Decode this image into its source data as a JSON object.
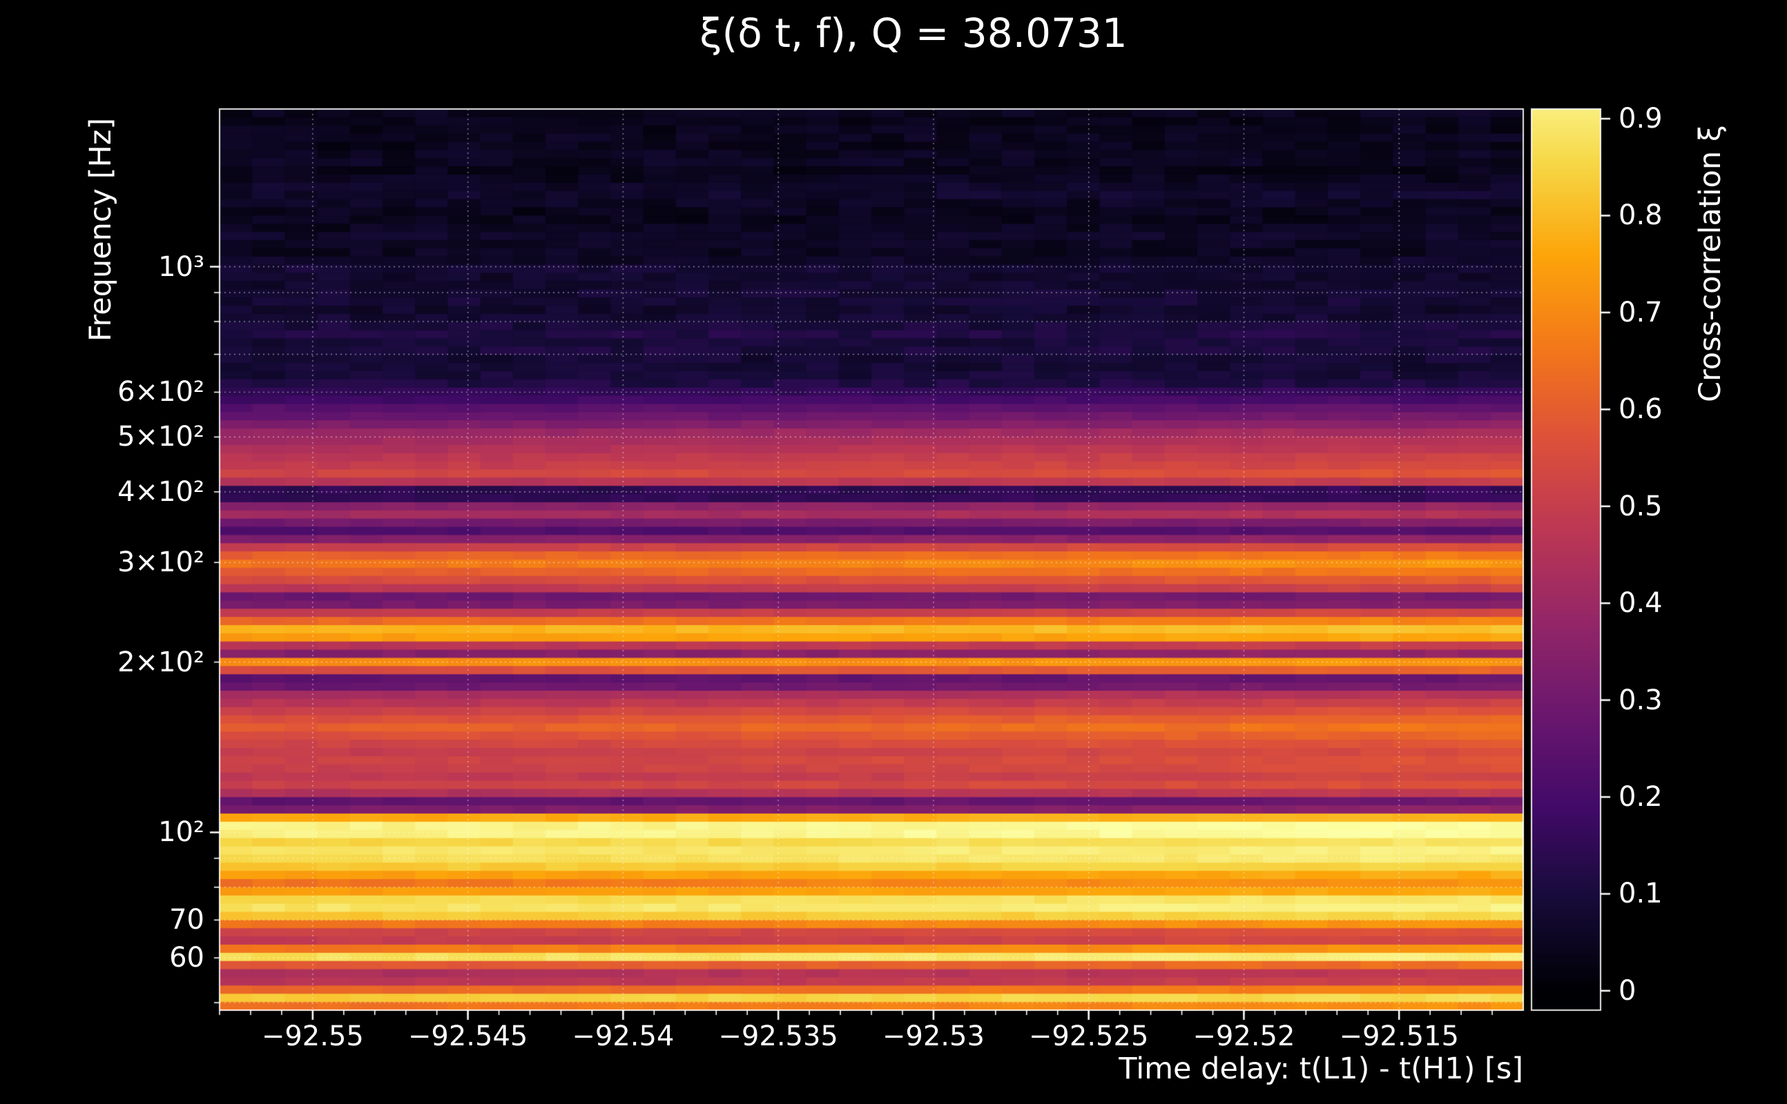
{
  "chart_data": {
    "type": "heatmap",
    "title": "ξ(δ t, f), Q = 38.0731",
    "xlabel": "Time delay: t(L1) - t(H1) [s]",
    "ylabel": "Frequency [Hz]",
    "colorbar_label": "Cross-correlation ξ",
    "x_range": [
      -92.553,
      -92.511
    ],
    "y_range_hz": [
      48.5,
      1900
    ],
    "y_scale": "log",
    "grid": "dotted-white",
    "x_ticks": [
      {
        "label": "−92.55",
        "value": -92.55
      },
      {
        "label": "−92.545",
        "value": -92.545
      },
      {
        "label": "−92.54",
        "value": -92.54
      },
      {
        "label": "−92.535",
        "value": -92.535
      },
      {
        "label": "−92.53",
        "value": -92.53
      },
      {
        "label": "−92.525",
        "value": -92.525
      },
      {
        "label": "−92.52",
        "value": -92.52
      },
      {
        "label": "−92.515",
        "value": -92.515
      }
    ],
    "x_minor_step": 0.001,
    "y_ticks": [
      {
        "label": "10³",
        "value": 1000
      },
      {
        "label": "6×10²",
        "value": 600
      },
      {
        "label": "5×10²",
        "value": 500
      },
      {
        "label": "4×10²",
        "value": 400
      },
      {
        "label": "3×10²",
        "value": 300
      },
      {
        "label": "2×10²",
        "value": 200
      },
      {
        "label": "10²",
        "value": 100
      },
      {
        "label": "70",
        "value": 70
      },
      {
        "label": "60",
        "value": 60
      }
    ],
    "y_all_ticks": [
      50,
      60,
      70,
      80,
      90,
      100,
      200,
      300,
      400,
      500,
      600,
      700,
      800,
      900,
      1000
    ],
    "y_major_ticks": [
      100,
      1000
    ],
    "vmax": 0.95,
    "colorbar": {
      "range": [
        -0.02,
        0.91
      ],
      "ticks": [
        {
          "label": "0",
          "value": 0.0
        },
        {
          "label": "0.1",
          "value": 0.1
        },
        {
          "label": "0.2",
          "value": 0.2
        },
        {
          "label": "0.3",
          "value": 0.3
        },
        {
          "label": "0.4",
          "value": 0.4
        },
        {
          "label": "0.5",
          "value": 0.5
        },
        {
          "label": "0.6",
          "value": 0.6
        },
        {
          "label": "0.7",
          "value": 0.7
        },
        {
          "label": "0.8",
          "value": 0.8
        },
        {
          "label": "0.9",
          "value": 0.9
        }
      ]
    },
    "colormap": {
      "name": "inferno",
      "stops": [
        {
          "pos": 0.0,
          "color": "#000004"
        },
        {
          "pos": 0.1,
          "color": "#160b39"
        },
        {
          "pos": 0.2,
          "color": "#420a68"
        },
        {
          "pos": 0.3,
          "color": "#6a176e"
        },
        {
          "pos": 0.4,
          "color": "#932667"
        },
        {
          "pos": 0.5,
          "color": "#bc3754"
        },
        {
          "pos": 0.6,
          "color": "#dd513a"
        },
        {
          "pos": 0.7,
          "color": "#f37819"
        },
        {
          "pos": 0.8,
          "color": "#fca50a"
        },
        {
          "pos": 0.9,
          "color": "#f6d746"
        },
        {
          "pos": 1.0,
          "color": "#fcffa4"
        }
      ]
    },
    "time_trend": {
      "left_factor": 0.94,
      "right_factor": 1.06
    },
    "frequency_profile": [
      [
        48,
        0.55
      ],
      [
        49.5,
        0.7
      ],
      [
        51,
        0.85
      ],
      [
        52.5,
        0.68
      ],
      [
        54,
        0.5
      ],
      [
        56,
        0.44
      ],
      [
        58,
        0.55
      ],
      [
        59.5,
        0.88
      ],
      [
        61,
        0.9
      ],
      [
        62.5,
        0.66
      ],
      [
        64,
        0.52
      ],
      [
        66,
        0.5
      ],
      [
        68,
        0.63
      ],
      [
        70,
        0.78
      ],
      [
        72,
        0.88
      ],
      [
        75,
        0.92
      ],
      [
        78,
        0.8
      ],
      [
        80,
        0.66
      ],
      [
        83,
        0.72
      ],
      [
        86,
        0.82
      ],
      [
        89,
        0.88
      ],
      [
        93,
        0.9
      ],
      [
        97,
        0.86
      ],
      [
        100,
        0.95
      ],
      [
        103,
        0.93
      ],
      [
        106,
        0.8
      ],
      [
        109,
        0.4
      ],
      [
        112,
        0.18
      ],
      [
        116,
        0.42
      ],
      [
        120,
        0.55
      ],
      [
        126,
        0.5
      ],
      [
        132,
        0.55
      ],
      [
        139,
        0.52
      ],
      [
        146,
        0.57
      ],
      [
        153,
        0.63
      ],
      [
        160,
        0.58
      ],
      [
        168,
        0.5
      ],
      [
        175,
        0.44
      ],
      [
        181,
        0.3
      ],
      [
        185,
        0.12
      ],
      [
        190,
        0.45
      ],
      [
        196,
        0.68
      ],
      [
        202,
        0.74
      ],
      [
        207,
        0.35
      ],
      [
        211,
        0.25
      ],
      [
        216,
        0.65
      ],
      [
        222,
        0.77
      ],
      [
        229,
        0.8
      ],
      [
        237,
        0.65
      ],
      [
        245,
        0.5
      ],
      [
        252,
        0.35
      ],
      [
        258,
        0.15
      ],
      [
        264,
        0.42
      ],
      [
        272,
        0.52
      ],
      [
        281,
        0.58
      ],
      [
        290,
        0.64
      ],
      [
        300,
        0.7
      ],
      [
        310,
        0.63
      ],
      [
        320,
        0.52
      ],
      [
        330,
        0.35
      ],
      [
        340,
        0.22
      ],
      [
        350,
        0.28
      ],
      [
        360,
        0.42
      ],
      [
        370,
        0.44
      ],
      [
        380,
        0.34
      ],
      [
        390,
        0.15
      ],
      [
        398,
        0.06
      ],
      [
        406,
        0.2
      ],
      [
        415,
        0.46
      ],
      [
        428,
        0.56
      ],
      [
        442,
        0.52
      ],
      [
        458,
        0.5
      ],
      [
        472,
        0.47
      ],
      [
        488,
        0.44
      ],
      [
        505,
        0.42
      ],
      [
        522,
        0.36
      ],
      [
        540,
        0.3
      ],
      [
        560,
        0.26
      ],
      [
        580,
        0.2
      ],
      [
        600,
        0.16
      ],
      [
        625,
        0.11
      ],
      [
        650,
        0.09
      ],
      [
        680,
        0.08
      ],
      [
        705,
        0.11
      ],
      [
        730,
        0.09
      ],
      [
        760,
        0.12
      ],
      [
        790,
        0.1
      ],
      [
        820,
        0.08
      ],
      [
        850,
        0.07
      ],
      [
        880,
        0.1
      ],
      [
        915,
        0.08
      ],
      [
        950,
        0.07
      ],
      [
        990,
        0.09
      ],
      [
        1030,
        0.06
      ],
      [
        1080,
        0.05
      ],
      [
        1130,
        0.07
      ],
      [
        1180,
        0.05
      ],
      [
        1240,
        0.04
      ],
      [
        1300,
        0.06
      ],
      [
        1360,
        0.08
      ],
      [
        1420,
        0.05
      ],
      [
        1480,
        0.04
      ],
      [
        1550,
        0.06
      ],
      [
        1620,
        0.04
      ],
      [
        1700,
        0.05
      ],
      [
        1780,
        0.04
      ],
      [
        1860,
        0.05
      ],
      [
        1900,
        0.04
      ]
    ]
  }
}
